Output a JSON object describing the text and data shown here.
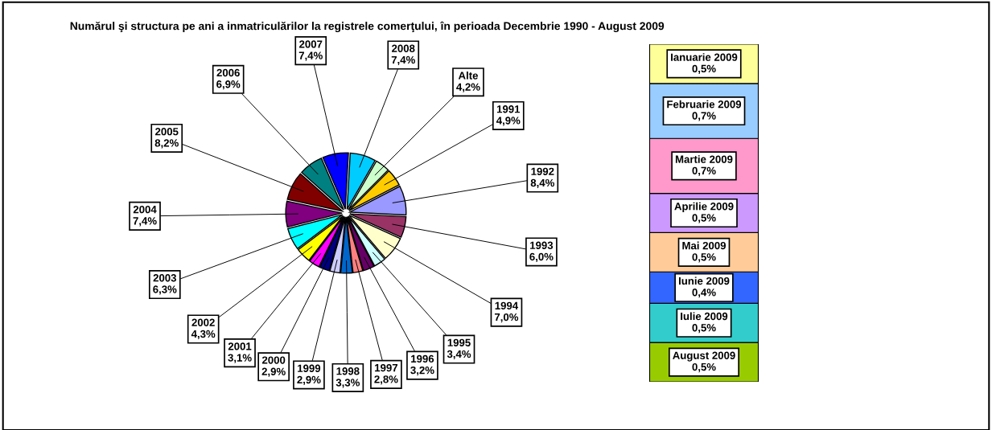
{
  "chart_data": [
    {
      "type": "pie",
      "title": "Numărul şi structura pe ani a inmatriculărilor la registrele comerţului, în perioada Decembrie 1990 - August 2009",
      "categories": [
        "1991",
        "1992",
        "1993",
        "1994",
        "1995",
        "1996",
        "1997",
        "1998",
        "1999",
        "2000",
        "2001",
        "2002",
        "2003",
        "2004",
        "2005",
        "2006",
        "2007",
        "2008",
        "Alte"
      ],
      "values": [
        4.9,
        8.4,
        6.0,
        7.0,
        3.4,
        3.2,
        2.8,
        3.3,
        2.9,
        2.9,
        3.1,
        4.3,
        6.3,
        7.4,
        8.2,
        6.9,
        7.4,
        7.4,
        4.2
      ],
      "value_labels": [
        "4,9%",
        "8,4%",
        "6,0%",
        "7,0%",
        "3,4%",
        "3,2%",
        "2,8%",
        "3,3%",
        "2,9%",
        "2,9%",
        "3,1%",
        "4,3%",
        "6,3%",
        "7,4%",
        "8,2%",
        "6,9%",
        "7,4%",
        "7,4%",
        "4,2%"
      ],
      "colors": [
        "#ffcc00",
        "#9999ff",
        "#993366",
        "#ffffcc",
        "#ccffff",
        "#660066",
        "#ff8080",
        "#0066cc",
        "#ccccff",
        "#000080",
        "#ff00ff",
        "#ffff00",
        "#00ffff",
        "#800080",
        "#800000",
        "#008080",
        "#0000ff",
        "#00ccff",
        "#ccffcc"
      ]
    },
    {
      "type": "bar",
      "stacked": true,
      "categories": [
        null
      ],
      "series": [
        {
          "name": "August 2009",
          "color": "#99cc00",
          "values": [
            0.5
          ],
          "value_labels": [
            "0,5%"
          ]
        },
        {
          "name": "Iulie 2009",
          "color": "#33cccc",
          "values": [
            0.5
          ],
          "value_labels": [
            "0,5%"
          ]
        },
        {
          "name": "Iunie 2009",
          "color": "#3366ff",
          "values": [
            0.4
          ],
          "value_labels": [
            "0,4%"
          ]
        },
        {
          "name": "Mai 2009",
          "color": "#ffcc99",
          "values": [
            0.5
          ],
          "value_labels": [
            "0,5%"
          ]
        },
        {
          "name": "Aprilie 2009",
          "color": "#cc99ff",
          "values": [
            0.5
          ],
          "value_labels": [
            "0,5%"
          ]
        },
        {
          "name": "Martie 2009",
          "color": "#ff99cc",
          "values": [
            0.7
          ],
          "value_labels": [
            "0,7%"
          ]
        },
        {
          "name": "Februarie 2009",
          "color": "#99ccff",
          "values": [
            0.7
          ],
          "value_labels": [
            "0,7%"
          ]
        },
        {
          "name": "Ianuarie 2009",
          "color": "#ffff99",
          "values": [
            0.5
          ],
          "value_labels": [
            "0,5%"
          ]
        }
      ]
    }
  ]
}
